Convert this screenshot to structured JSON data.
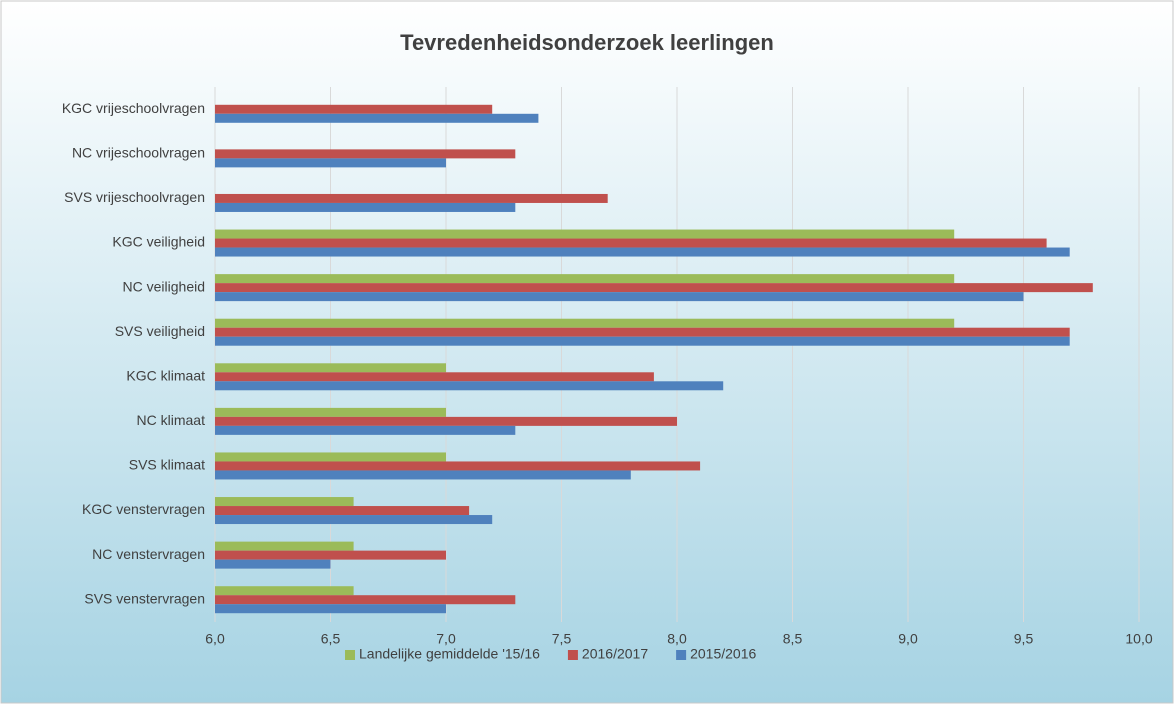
{
  "chart_data": {
    "type": "hbar",
    "title": "Tevredenheidsonderzoek leerlingen",
    "categories": [
      "KGC vrijeschoolvragen",
      "NC vrijeschoolvragen",
      "SVS vrijeschoolvragen",
      "KGC veiligheid",
      "NC veiligheid",
      "SVS veiligheid",
      "KGC klimaat",
      "NC klimaat",
      "SVS klimaat",
      "KGC venstervragen",
      "NC venstervragen",
      "SVS venstervragen"
    ],
    "series": [
      {
        "name": "Landelijke gemiddelde '15/16",
        "color": "#9bbb59",
        "values": [
          null,
          null,
          null,
          9.2,
          9.2,
          9.2,
          7.0,
          7.0,
          7.0,
          6.6,
          6.6,
          6.6
        ]
      },
      {
        "name": "2016/2017",
        "color": "#c0504d",
        "values": [
          7.2,
          7.3,
          7.7,
          9.6,
          9.8,
          9.7,
          7.9,
          8.0,
          8.1,
          7.1,
          7.0,
          7.3
        ]
      },
      {
        "name": "2015/2016",
        "color": "#4f81bd",
        "values": [
          7.4,
          7.0,
          7.3,
          9.7,
          9.5,
          9.7,
          8.2,
          7.3,
          7.8,
          7.2,
          6.5,
          7.0
        ]
      }
    ],
    "xlim": [
      6.0,
      10.0
    ],
    "xticks": [
      {
        "value": 6.0,
        "label": "6,0"
      },
      {
        "value": 6.5,
        "label": "6,5"
      },
      {
        "value": 7.0,
        "label": "7,0"
      },
      {
        "value": 7.5,
        "label": "7,5"
      },
      {
        "value": 8.0,
        "label": "8,0"
      },
      {
        "value": 8.5,
        "label": "8,5"
      },
      {
        "value": 9.0,
        "label": "9,0"
      },
      {
        "value": 9.5,
        "label": "9,5"
      },
      {
        "value": 10.0,
        "label": "10,0"
      }
    ],
    "grid": true,
    "legend": "bottom"
  }
}
